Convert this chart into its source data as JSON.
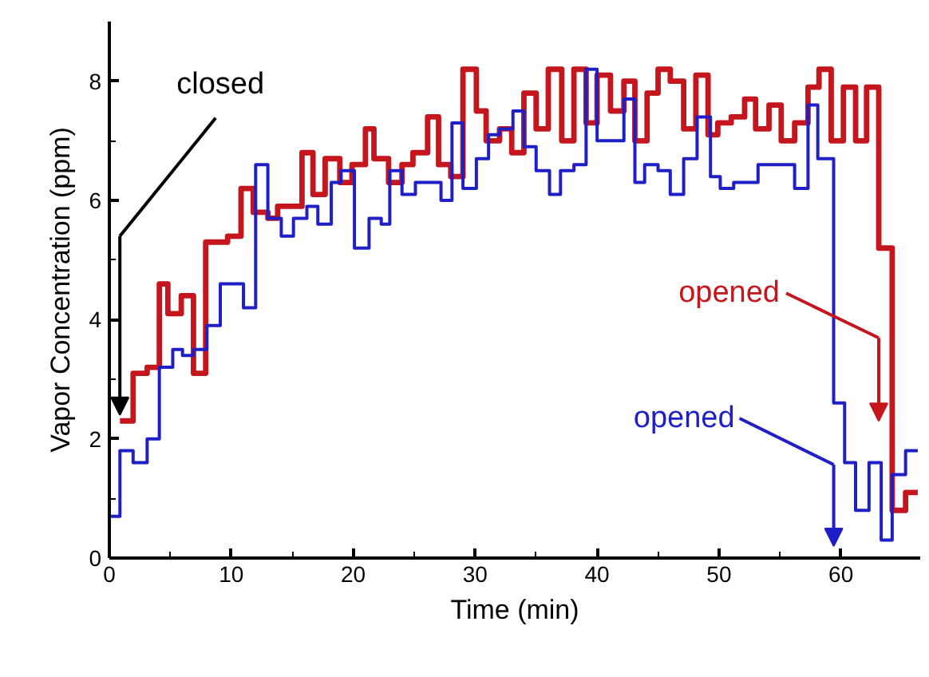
{
  "chart_data": {
    "type": "step",
    "xlabel": "Time (min)",
    "ylabel": "Vapor Concentration (ppm)",
    "xlim": [
      0,
      66.5
    ],
    "ylim": [
      0,
      9
    ],
    "xticks": [
      0,
      10,
      20,
      30,
      40,
      50,
      60
    ],
    "yticks": [
      0,
      2,
      4,
      6,
      8
    ],
    "grid": false,
    "series": [
      {
        "color": "#c4161c",
        "x": [
          0.87,
          1.95,
          3.1,
          4.1,
          4.8,
          5.9,
          6.9,
          7.9,
          9.7,
          10.8,
          11.8,
          13.0,
          13.8,
          15.8,
          16.7,
          17.7,
          18.9,
          19.9,
          21.0,
          21.7,
          22.9,
          24.0,
          24.9,
          26.1,
          27.0,
          28.0,
          29.0,
          30.1,
          30.9,
          32.0,
          33.0,
          34.0,
          35.0,
          36.0,
          37.1,
          38.1,
          39.1,
          40.0,
          41.1,
          42.2,
          43.1,
          44.1,
          45.0,
          46.0,
          47.1,
          48.1,
          49.1,
          49.9,
          51.0,
          52.1,
          53.0,
          54.1,
          55.1,
          56.2,
          57.3,
          58.2,
          59.2,
          60.2,
          61.2,
          62.1,
          63.1,
          64.2,
          65.3,
          66.3
        ],
        "values": [
          2.3,
          3.1,
          3.2,
          4.6,
          4.1,
          4.4,
          3.1,
          5.3,
          5.4,
          6.2,
          5.8,
          5.7,
          5.9,
          6.8,
          6.1,
          6.7,
          6.3,
          6.6,
          7.2,
          6.7,
          6.3,
          6.6,
          6.8,
          7.4,
          6.6,
          6.4,
          8.2,
          7.5,
          7.0,
          7.2,
          6.8,
          7.8,
          7.2,
          8.2,
          7.0,
          8.2,
          7.3,
          8.1,
          7.5,
          8.0,
          7.0,
          7.8,
          8.2,
          8.0,
          7.2,
          8.1,
          7.1,
          7.3,
          7.4,
          7.7,
          7.2,
          7.6,
          7.0,
          7.3,
          7.9,
          8.2,
          7.0,
          7.9,
          7.0,
          7.9,
          5.2,
          0.8,
          1.1,
          1.1
        ]
      },
      {
        "color": "#1f1fc8",
        "x": [
          0,
          0.87,
          1.95,
          3.1,
          4.1,
          5.2,
          6.0,
          6.9,
          8.0,
          9.1,
          11.0,
          12.0,
          13.0,
          14.1,
          15.1,
          16.2,
          17.1,
          18.2,
          19.0,
          20.1,
          21.3,
          22.3,
          23.0,
          24.0,
          25.1,
          27.2,
          28.1,
          29.0,
          30.1,
          31.1,
          32.0,
          33.1,
          34.0,
          35.0,
          36.1,
          37.0,
          38.1,
          39.1,
          40.0,
          42.2,
          43.1,
          43.9,
          45.0,
          46.0,
          47.1,
          48.2,
          49.3,
          50.1,
          51.2,
          53.2,
          56.2,
          57.3,
          58.1,
          59.4,
          60.3,
          61.2,
          62.3,
          63.3,
          64.2,
          65.3,
          66.3
        ],
        "values": [
          0.7,
          1.8,
          1.6,
          2.0,
          3.2,
          3.5,
          3.4,
          3.5,
          3.9,
          4.6,
          4.2,
          6.6,
          5.7,
          5.4,
          5.7,
          5.9,
          5.6,
          6.3,
          6.5,
          5.2,
          5.7,
          5.6,
          6.5,
          6.1,
          6.3,
          6.0,
          7.3,
          6.2,
          6.7,
          7.1,
          7.2,
          7.5,
          6.9,
          6.5,
          6.1,
          6.5,
          6.6,
          8.2,
          7.0,
          7.7,
          6.3,
          6.6,
          6.5,
          6.1,
          6.7,
          7.4,
          6.4,
          6.2,
          6.3,
          6.6,
          6.2,
          7.6,
          6.7,
          2.6,
          1.6,
          0.8,
          1.6,
          0.3,
          1.4,
          1.8,
          1.8
        ]
      }
    ],
    "annotations": [
      "closed",
      "opened",
      "opened"
    ]
  }
}
